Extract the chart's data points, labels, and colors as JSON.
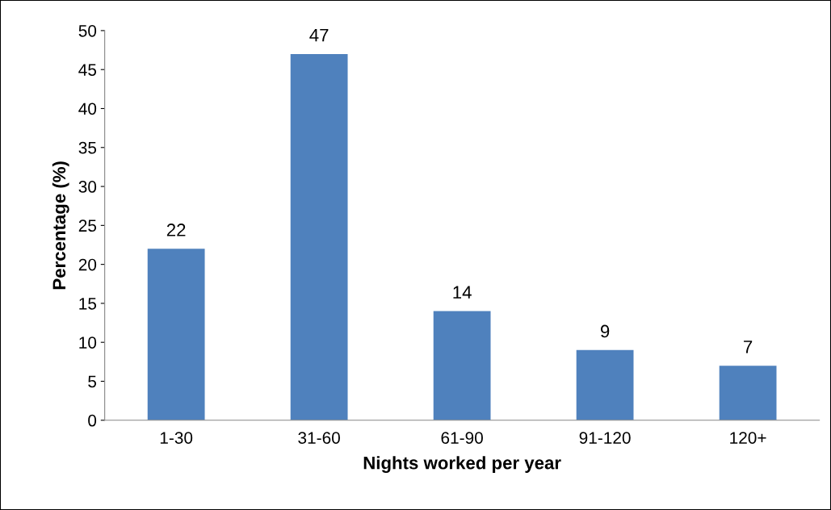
{
  "chart_data": {
    "type": "bar",
    "xlabel": "Nights worked per year",
    "ylabel": "Percentage (%)",
    "categories": [
      "1-30",
      "31-60",
      "61-90",
      "91-120",
      "120+"
    ],
    "values": [
      22,
      47,
      14,
      9,
      7
    ],
    "color": "#4f81bd",
    "ylim": [
      0,
      50
    ],
    "yticks": [
      0,
      5,
      10,
      15,
      20,
      25,
      30,
      35,
      40,
      45,
      50
    ],
    "grid": false,
    "legend": false,
    "data_labels": true
  }
}
